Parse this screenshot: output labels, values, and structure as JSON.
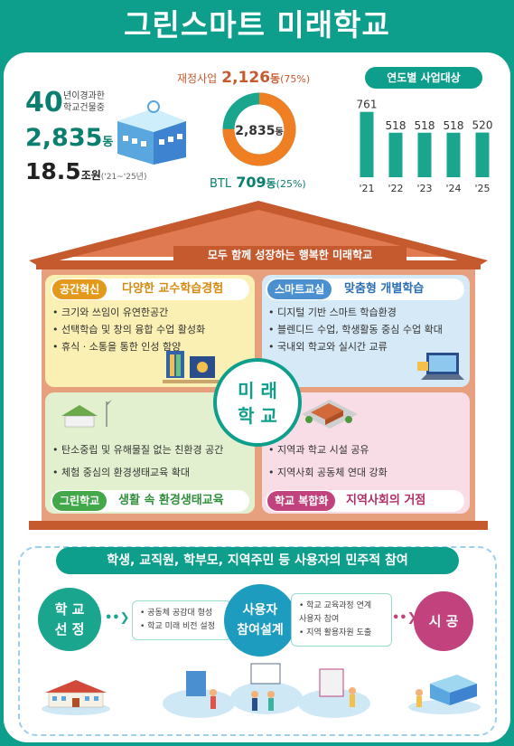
{
  "title": "그린스마트 미래학교",
  "stats": {
    "building_num": "40",
    "building_text1": "년이경과한",
    "building_text2": "학교건물중",
    "count_num": "2,835",
    "count_unit": "동",
    "budget_num": "18.5",
    "budget_unit": "조원",
    "budget_period": "('21~'25년)"
  },
  "donut": {
    "finance_label": "재정사업",
    "finance_value": "2,126",
    "finance_unit": "동",
    "finance_pct": "(75%)",
    "center_value": "2,835",
    "center_unit": "동",
    "btl_label": "BTL",
    "btl_value": "709",
    "btl_unit": "동",
    "btl_pct": "(25%)",
    "finance_fraction": 0.75,
    "colors": {
      "finance": "#ef7f22",
      "btl": "#1aa58f"
    }
  },
  "yearly": {
    "title": "연도별 사업대상",
    "chart_data": {
      "type": "bar",
      "categories": [
        "'21",
        "'22",
        "'23",
        "'24",
        "'25"
      ],
      "values": [
        761,
        518,
        518,
        518,
        520
      ],
      "ylim": [
        0,
        800
      ],
      "color": "#1aa58f"
    }
  },
  "house": {
    "banner": "모두 함께 성장하는 행복한 미래학교",
    "center_line1": "미 래",
    "center_line2": "학 교",
    "q1": {
      "tag": "공간혁신",
      "title": "다양한 교수학습경험",
      "items": [
        "• 크기와 쓰임이 유연한공간",
        "• 선택학습 및 창의 융합 수업 활성화",
        "• 휴식 · 소통을 통한 인성 함양"
      ]
    },
    "q2": {
      "tag": "스마트교실",
      "title": "맞춤형 개별학습",
      "items": [
        "• 디지털 기반 스마트 학습환경",
        "• 블렌디드 수업, 학생활동 중심 수업 확대",
        "• 국내외 학교와 실시간 교류"
      ]
    },
    "q3": {
      "tag": "그린학교",
      "title": "생활 속 환경생태교육",
      "items": [
        "• 탄소중립 및 유해물질 없는 친환경 공간",
        "• 체험 중심의 환경생태교육 확대"
      ]
    },
    "q4": {
      "tag": "학교 복합화",
      "title": "지역사회의 거점",
      "items": [
        "• 지역과 학교 시설 공유",
        "• 지역사회 공동체 연대 강화"
      ]
    }
  },
  "process": {
    "banner": "학생, 교직원, 학부모, 지역주민 등 사용자의 민주적 참여",
    "step1": "학 교\n선 정",
    "box1": [
      "• 공동체 공감대 형성",
      "• 학교 미래 비전 설정"
    ],
    "step2": "사용자\n참여설계",
    "box2": [
      "• 학교 교육과정 연계",
      "  사용자 참여",
      "• 지역 활용자원 도출"
    ],
    "step3": "시 공",
    "colors": {
      "step1": "#1aa58f",
      "step2": "#1e9cc0",
      "step3": "#c2427e"
    }
  }
}
